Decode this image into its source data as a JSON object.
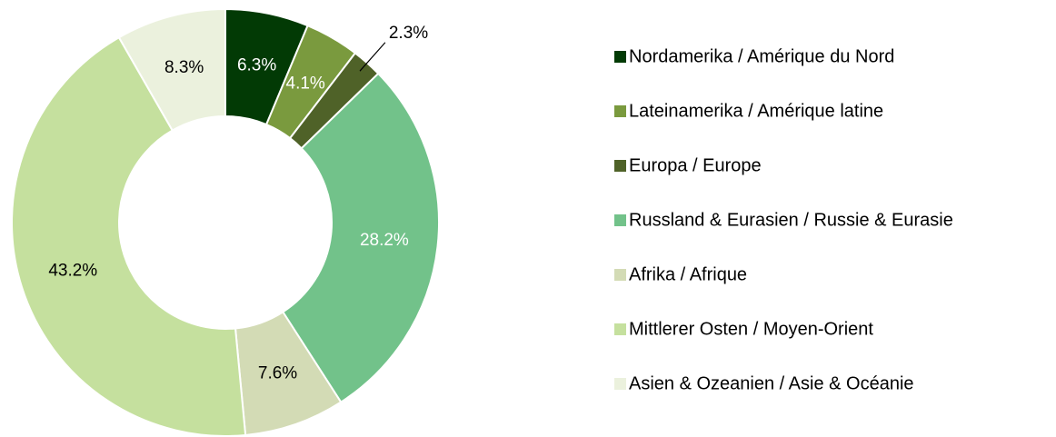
{
  "chart_data": {
    "type": "pie",
    "categories": [
      "Nordamerika / Amérique du Nord",
      "Lateinamerika / Amérique latine",
      "Europa / Europe",
      "Russland & Eurasien / Russie & Eurasie",
      "Afrika / Afrique",
      "Mittlerer Osten / Moyen-Orient",
      "Asien & Ozeanien / Asie & Océanie"
    ],
    "values": [
      6.3,
      4.1,
      2.3,
      28.2,
      7.6,
      43.2,
      8.3
    ],
    "value_labels": [
      "6.3%",
      "4.1%",
      "2.3%",
      "28.2%",
      "7.6%",
      "43.2%",
      "8.3%"
    ],
    "colors": [
      "#023a05",
      "#7a9a3e",
      "#4f6228",
      "#72c28a",
      "#d3dbb5",
      "#c5e09e",
      "#ebf1dd"
    ],
    "label_colors": [
      "#ffffff",
      "#ffffff",
      "#000000",
      "#ffffff",
      "#000000",
      "#000000",
      "#000000"
    ],
    "legend": "right"
  }
}
